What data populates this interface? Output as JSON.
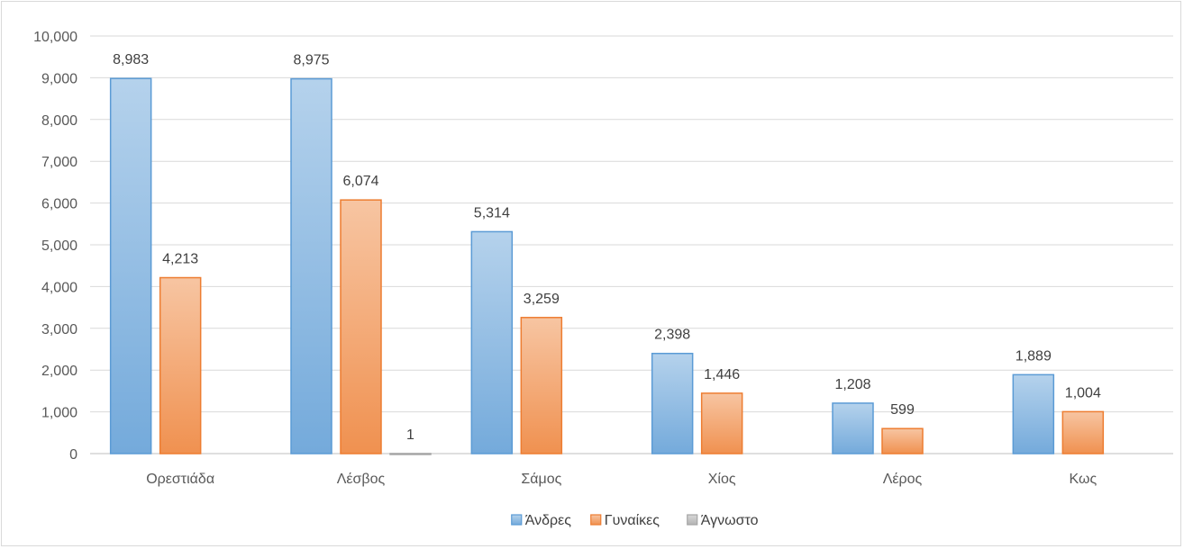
{
  "chart_data": {
    "type": "bar",
    "categories": [
      "Ορεστιάδα",
      "Λέσβος",
      "Σάμος",
      "Χίος",
      "Λέρος",
      "Κως"
    ],
    "series": [
      {
        "name": "Άνδρες",
        "values": [
          8983,
          8975,
          5314,
          2398,
          1208,
          1889
        ],
        "labels": [
          "8,983",
          "8,975",
          "5,314",
          "2,398",
          "1,208",
          "1,889"
        ],
        "color": "#5b9bd5"
      },
      {
        "name": "Γυναίκες",
        "values": [
          4213,
          6074,
          3259,
          1446,
          599,
          1004
        ],
        "labels": [
          "4,213",
          "6,074",
          "3,259",
          "1,446",
          "599",
          "1,004"
        ],
        "color": "#ed7d31"
      },
      {
        "name": "Άγνωστο",
        "values": [
          0,
          1,
          0,
          0,
          0,
          0
        ],
        "labels": [
          "",
          "1",
          "",
          "",
          "",
          ""
        ],
        "color": "#a5a5a5"
      }
    ],
    "yticks": [
      "0",
      "1,000",
      "2,000",
      "3,000",
      "4,000",
      "5,000",
      "6,000",
      "7,000",
      "8,000",
      "9,000",
      "10,000"
    ],
    "ylim": [
      0,
      10000
    ],
    "grid": true,
    "legend_position": "bottom"
  }
}
